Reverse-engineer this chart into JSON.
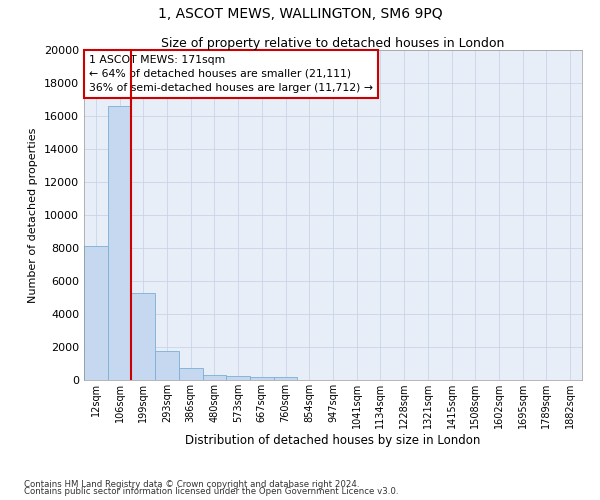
{
  "title": "1, ASCOT MEWS, WALLINGTON, SM6 9PQ",
  "subtitle": "Size of property relative to detached houses in London",
  "xlabel": "Distribution of detached houses by size in London",
  "ylabel": "Number of detached properties",
  "categories": [
    "12sqm",
    "106sqm",
    "199sqm",
    "293sqm",
    "386sqm",
    "480sqm",
    "573sqm",
    "667sqm",
    "760sqm",
    "854sqm",
    "947sqm",
    "1041sqm",
    "1134sqm",
    "1228sqm",
    "1321sqm",
    "1415sqm",
    "1508sqm",
    "1602sqm",
    "1695sqm",
    "1789sqm",
    "1882sqm"
  ],
  "values": [
    8100,
    16600,
    5300,
    1750,
    750,
    320,
    250,
    200,
    160,
    0,
    0,
    0,
    0,
    0,
    0,
    0,
    0,
    0,
    0,
    0,
    0
  ],
  "bar_color": "#c5d8f0",
  "bar_edge_color": "#7bafd4",
  "grid_color": "#c8d4e8",
  "background_color": "#e8eef8",
  "vline_x": 1.5,
  "vline_color": "#cc0000",
  "annotation_text": "1 ASCOT MEWS: 171sqm\n← 64% of detached houses are smaller (21,111)\n36% of semi-detached houses are larger (11,712) →",
  "annotation_box_color": "#ffffff",
  "annotation_box_edge": "#cc0000",
  "ylim": [
    0,
    20000
  ],
  "yticks": [
    0,
    2000,
    4000,
    6000,
    8000,
    10000,
    12000,
    14000,
    16000,
    18000,
    20000
  ],
  "footer1": "Contains HM Land Registry data © Crown copyright and database right 2024.",
  "footer2": "Contains public sector information licensed under the Open Government Licence v3.0."
}
